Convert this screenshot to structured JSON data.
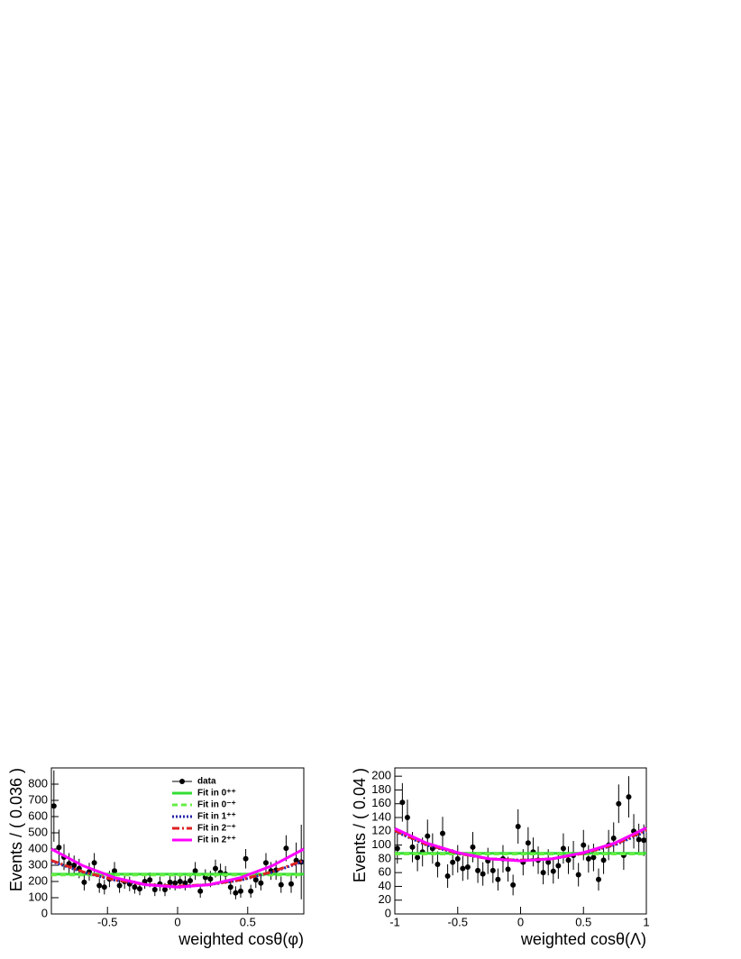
{
  "chart_data": [
    {
      "type": "scatter",
      "xlabel": "weighted cosθ(φ)",
      "ylabel": "Events / ( 0.036 )",
      "xlim": [
        -0.9,
        0.9
      ],
      "ylim": [
        0,
        900
      ],
      "xticks": [
        -0.5,
        0,
        0.5
      ],
      "yticks": [
        0,
        100,
        200,
        300,
        400,
        500,
        600,
        700,
        800
      ],
      "legend": "upper center",
      "series": [
        {
          "name": "data",
          "color": "#000000",
          "style": "points",
          "x": [
            -0.882,
            -0.846,
            -0.81,
            -0.774,
            -0.738,
            -0.702,
            -0.666,
            -0.63,
            -0.594,
            -0.558,
            -0.522,
            -0.486,
            -0.45,
            -0.414,
            -0.378,
            -0.342,
            -0.306,
            -0.27,
            -0.234,
            -0.198,
            -0.162,
            -0.126,
            -0.09,
            -0.054,
            -0.018,
            0.018,
            0.054,
            0.09,
            0.126,
            0.162,
            0.198,
            0.234,
            0.27,
            0.306,
            0.342,
            0.378,
            0.414,
            0.45,
            0.486,
            0.522,
            0.558,
            0.594,
            0.63,
            0.666,
            0.702,
            0.738,
            0.774,
            0.81,
            0.846,
            0.882
          ],
          "values": [
            665,
            410,
            350,
            310,
            300,
            280,
            195,
            260,
            315,
            175,
            165,
            215,
            265,
            175,
            200,
            185,
            165,
            155,
            200,
            210,
            150,
            185,
            150,
            195,
            190,
            200,
            190,
            205,
            265,
            140,
            225,
            215,
            280,
            255,
            245,
            165,
            130,
            140,
            340,
            140,
            210,
            190,
            315,
            265,
            270,
            180,
            405,
            185,
            330,
            320
          ],
          "errors": [
            220,
            110,
            80,
            65,
            60,
            60,
            50,
            55,
            60,
            45,
            45,
            50,
            55,
            45,
            45,
            45,
            40,
            40,
            45,
            45,
            40,
            45,
            40,
            45,
            45,
            45,
            45,
            45,
            55,
            40,
            50,
            50,
            55,
            55,
            50,
            45,
            40,
            40,
            60,
            40,
            50,
            45,
            60,
            55,
            60,
            50,
            80,
            55,
            110,
            230
          ]
        },
        {
          "name": "Fit in 0⁺⁺",
          "color": "#33dd33",
          "style": "solid",
          "x": [
            -0.9,
            0.9
          ],
          "values": [
            245,
            245
          ]
        },
        {
          "name": "Fit in 0⁻⁺",
          "color": "#66ee44",
          "style": "dashed",
          "x": [
            -0.9,
            0.9
          ],
          "values": [
            240,
            240
          ]
        },
        {
          "name": "Fit in 1⁺⁺",
          "color": "#2222aa",
          "style": "dotted",
          "x": [
            -0.9,
            -0.675,
            -0.45,
            -0.225,
            0,
            0.225,
            0.45,
            0.675,
            0.9
          ],
          "values": [
            324,
            257,
            208,
            180,
            170,
            180,
            208,
            257,
            324
          ]
        },
        {
          "name": "Fit in 2⁻⁺",
          "color": "#dd2222",
          "style": "dashdot",
          "x": [
            -0.9,
            -0.675,
            -0.45,
            -0.225,
            0,
            0.225,
            0.45,
            0.675,
            0.9
          ],
          "values": [
            330,
            260,
            210,
            181,
            171,
            181,
            210,
            260,
            330
          ]
        },
        {
          "name": "Fit in 2⁺⁺",
          "color": "#ff00ff",
          "style": "solid",
          "x": [
            -0.9,
            -0.675,
            -0.45,
            -0.225,
            0,
            0.225,
            0.45,
            0.675,
            0.9
          ],
          "values": [
            400,
            297,
            224,
            180,
            165,
            180,
            224,
            297,
            400
          ]
        }
      ]
    },
    {
      "type": "scatter",
      "xlabel": "weighted cosθ(Λ)",
      "ylabel": "Events / ( 0.04 )",
      "xlim": [
        -1,
        1
      ],
      "ylim": [
        0,
        212
      ],
      "xticks": [
        -1,
        -0.5,
        0,
        0.5,
        1
      ],
      "yticks": [
        0,
        20,
        40,
        60,
        80,
        100,
        120,
        140,
        160,
        180,
        200
      ],
      "series": [
        {
          "color": "#000000",
          "style": "points",
          "x": [
            -0.98,
            -0.94,
            -0.9,
            -0.86,
            -0.82,
            -0.78,
            -0.74,
            -0.7,
            -0.66,
            -0.62,
            -0.58,
            -0.54,
            -0.5,
            -0.46,
            -0.42,
            -0.38,
            -0.34,
            -0.3,
            -0.26,
            -0.22,
            -0.18,
            -0.14,
            -0.1,
            -0.06,
            -0.02,
            0.02,
            0.06,
            0.1,
            0.14,
            0.18,
            0.22,
            0.26,
            0.3,
            0.34,
            0.38,
            0.42,
            0.46,
            0.5,
            0.54,
            0.58,
            0.62,
            0.66,
            0.7,
            0.74,
            0.78,
            0.82,
            0.86,
            0.9,
            0.94,
            0.98
          ],
          "values": [
            95,
            162,
            140,
            97,
            82,
            90,
            113,
            95,
            72,
            117,
            55,
            75,
            80,
            66,
            68,
            97,
            63,
            58,
            77,
            63,
            50,
            80,
            65,
            42,
            127,
            75,
            103,
            90,
            78,
            60,
            75,
            62,
            70,
            95,
            78,
            85,
            57,
            100,
            80,
            82,
            50,
            78,
            100,
            110,
            160,
            85,
            170,
            120,
            108,
            107
          ],
          "errors": [
            22,
            28,
            26,
            22,
            20,
            21,
            24,
            22,
            19,
            24,
            17,
            19,
            20,
            18,
            18,
            22,
            18,
            17,
            19,
            18,
            16,
            20,
            18,
            15,
            25,
            19,
            23,
            21,
            20,
            17,
            19,
            18,
            19,
            22,
            20,
            21,
            17,
            22,
            20,
            20,
            16,
            20,
            22,
            23,
            28,
            21,
            30,
            25,
            23,
            23
          ]
        },
        {
          "color": "#33dd33",
          "style": "solid",
          "x": [
            -1,
            1
          ],
          "values": [
            88,
            88
          ]
        },
        {
          "color": "#66ee44",
          "style": "dashed",
          "x": [
            -1,
            1
          ],
          "values": [
            87,
            87
          ]
        },
        {
          "color": "#2222aa",
          "style": "dotted",
          "x": [
            -1,
            -0.75,
            -0.5,
            -0.25,
            0,
            0.25,
            0.5,
            0.75,
            1
          ],
          "values": [
            120,
            100,
            88,
            80,
            78,
            80,
            88,
            100,
            120
          ]
        },
        {
          "color": "#dd2222",
          "style": "dashdot",
          "x": [
            -1,
            -0.75,
            -0.5,
            -0.25,
            0,
            0.25,
            0.5,
            0.75,
            1
          ],
          "values": [
            121,
            101,
            88,
            80,
            78,
            80,
            88,
            101,
            122
          ]
        },
        {
          "color": "#ff00ff",
          "style": "solid",
          "x": [
            -1,
            -0.75,
            -0.5,
            -0.25,
            0,
            0.25,
            0.5,
            0.75,
            1
          ],
          "values": [
            124,
            103,
            89,
            80,
            77,
            80,
            89,
            103,
            125
          ]
        }
      ]
    }
  ]
}
